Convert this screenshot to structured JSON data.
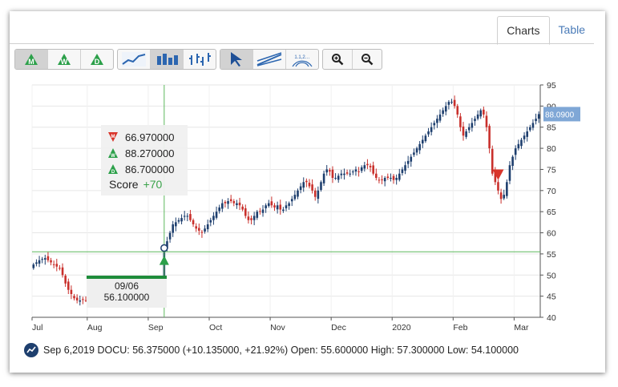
{
  "tabs": [
    {
      "label": "Charts",
      "active": true
    },
    {
      "label": "Table",
      "active": false
    }
  ],
  "toolbar": {
    "period_buttons": [
      {
        "letter": "M",
        "name": "monthly",
        "selected": true
      },
      {
        "letter": "W",
        "name": "weekly",
        "selected": false
      },
      {
        "letter": "D",
        "name": "daily",
        "selected": false
      }
    ],
    "chart_type_buttons": [
      "line-chart-icon",
      "bar-chart-icon",
      "ohlc-chart-icon"
    ],
    "tool_buttons": [
      "pointer-icon",
      "trendline-icon",
      "fibonacci-icon"
    ],
    "fib_label": "1.1,2…",
    "zoom_buttons": [
      "zoom-in-icon",
      "zoom-out-icon"
    ]
  },
  "tooltip": {
    "signals": [
      {
        "letter": "M",
        "direction": "down",
        "color": "#d9352b",
        "value": "66.970000"
      },
      {
        "letter": "W",
        "direction": "up",
        "color": "#2ca04a",
        "value": "88.270000"
      },
      {
        "letter": "D",
        "direction": "up",
        "color": "#2ca04a",
        "value": "86.700000"
      }
    ],
    "score_label": "Score",
    "score_value": "+70"
  },
  "cursor": {
    "date": "09/06",
    "value": "56.100000"
  },
  "last_price_label": "88.0900",
  "footer": {
    "date": "Sep 6,2019",
    "ticker": "DOCU:",
    "price": "56.375000",
    "change": "(+10.135000, +21.92%)",
    "open_label": "Open:",
    "open": "55.600000",
    "high_label": "High:",
    "high": "57.300000",
    "low_label": "Low:",
    "low": "54.100000"
  },
  "colors": {
    "up_candle": "#1e3f6e",
    "down_candle": "#c9302c",
    "accent_green": "#2ca04a",
    "last_price_badge": "#7fa7d6"
  },
  "chart_data": {
    "type": "candlestick",
    "x_ticks": [
      "Jul",
      "Aug",
      "Sep",
      "Oct",
      "Nov",
      "Dec",
      "2020",
      "Feb",
      "Mar"
    ],
    "y_ticks": [
      40,
      45,
      50,
      55,
      60,
      65,
      70,
      75,
      80,
      85,
      90,
      95
    ],
    "ylim": [
      40,
      95
    ],
    "grid": true,
    "reference_line": 55.5,
    "cursor_index": 45,
    "closes": [
      52.5,
      53,
      53.5,
      53.8,
      54,
      53.5,
      53,
      52.5,
      52,
      51.5,
      50,
      48,
      46.5,
      45.5,
      44.5,
      44,
      44,
      44.2,
      44,
      44,
      44.5,
      45,
      45,
      45.5,
      46,
      46,
      46,
      46.5,
      46.5,
      47,
      47.5,
      47.5,
      47.5,
      48,
      48,
      48,
      48,
      48.2,
      48.2,
      48.3,
      48.3,
      48.5,
      48.5,
      48.5,
      48.5,
      56.4,
      58,
      60,
      62,
      62.5,
      63,
      63.5,
      64,
      64,
      63,
      62,
      61,
      60.5,
      60,
      61,
      62,
      63,
      64,
      65,
      66,
      67,
      67,
      67.5,
      67.5,
      67,
      67,
      66.5,
      65.5,
      64,
      63,
      63,
      64,
      65,
      65,
      65.5,
      66.5,
      67,
      66.5,
      66,
      66.5,
      65.5,
      65.5,
      66.5,
      67,
      68,
      69,
      70,
      71,
      72,
      72,
      71,
      70,
      68.5,
      70,
      72,
      74,
      75,
      74.5,
      73,
      73,
      73.5,
      74,
      74,
      74,
      74,
      74.5,
      75,
      74.5,
      75.5,
      76,
      76,
      75.5,
      74,
      73,
      72.5,
      72.5,
      73,
      73,
      73,
      72.5,
      73,
      74,
      75,
      76,
      77,
      78,
      79,
      80,
      81,
      82,
      83,
      84,
      85,
      86,
      87,
      88,
      89,
      90,
      91,
      91,
      90,
      88,
      85,
      83,
      84,
      85,
      86,
      87,
      88,
      89,
      88,
      85,
      80,
      74,
      72,
      70,
      68,
      69,
      72,
      76,
      78,
      80,
      81,
      82,
      83,
      84,
      85,
      86,
      87,
      88.09
    ]
  }
}
